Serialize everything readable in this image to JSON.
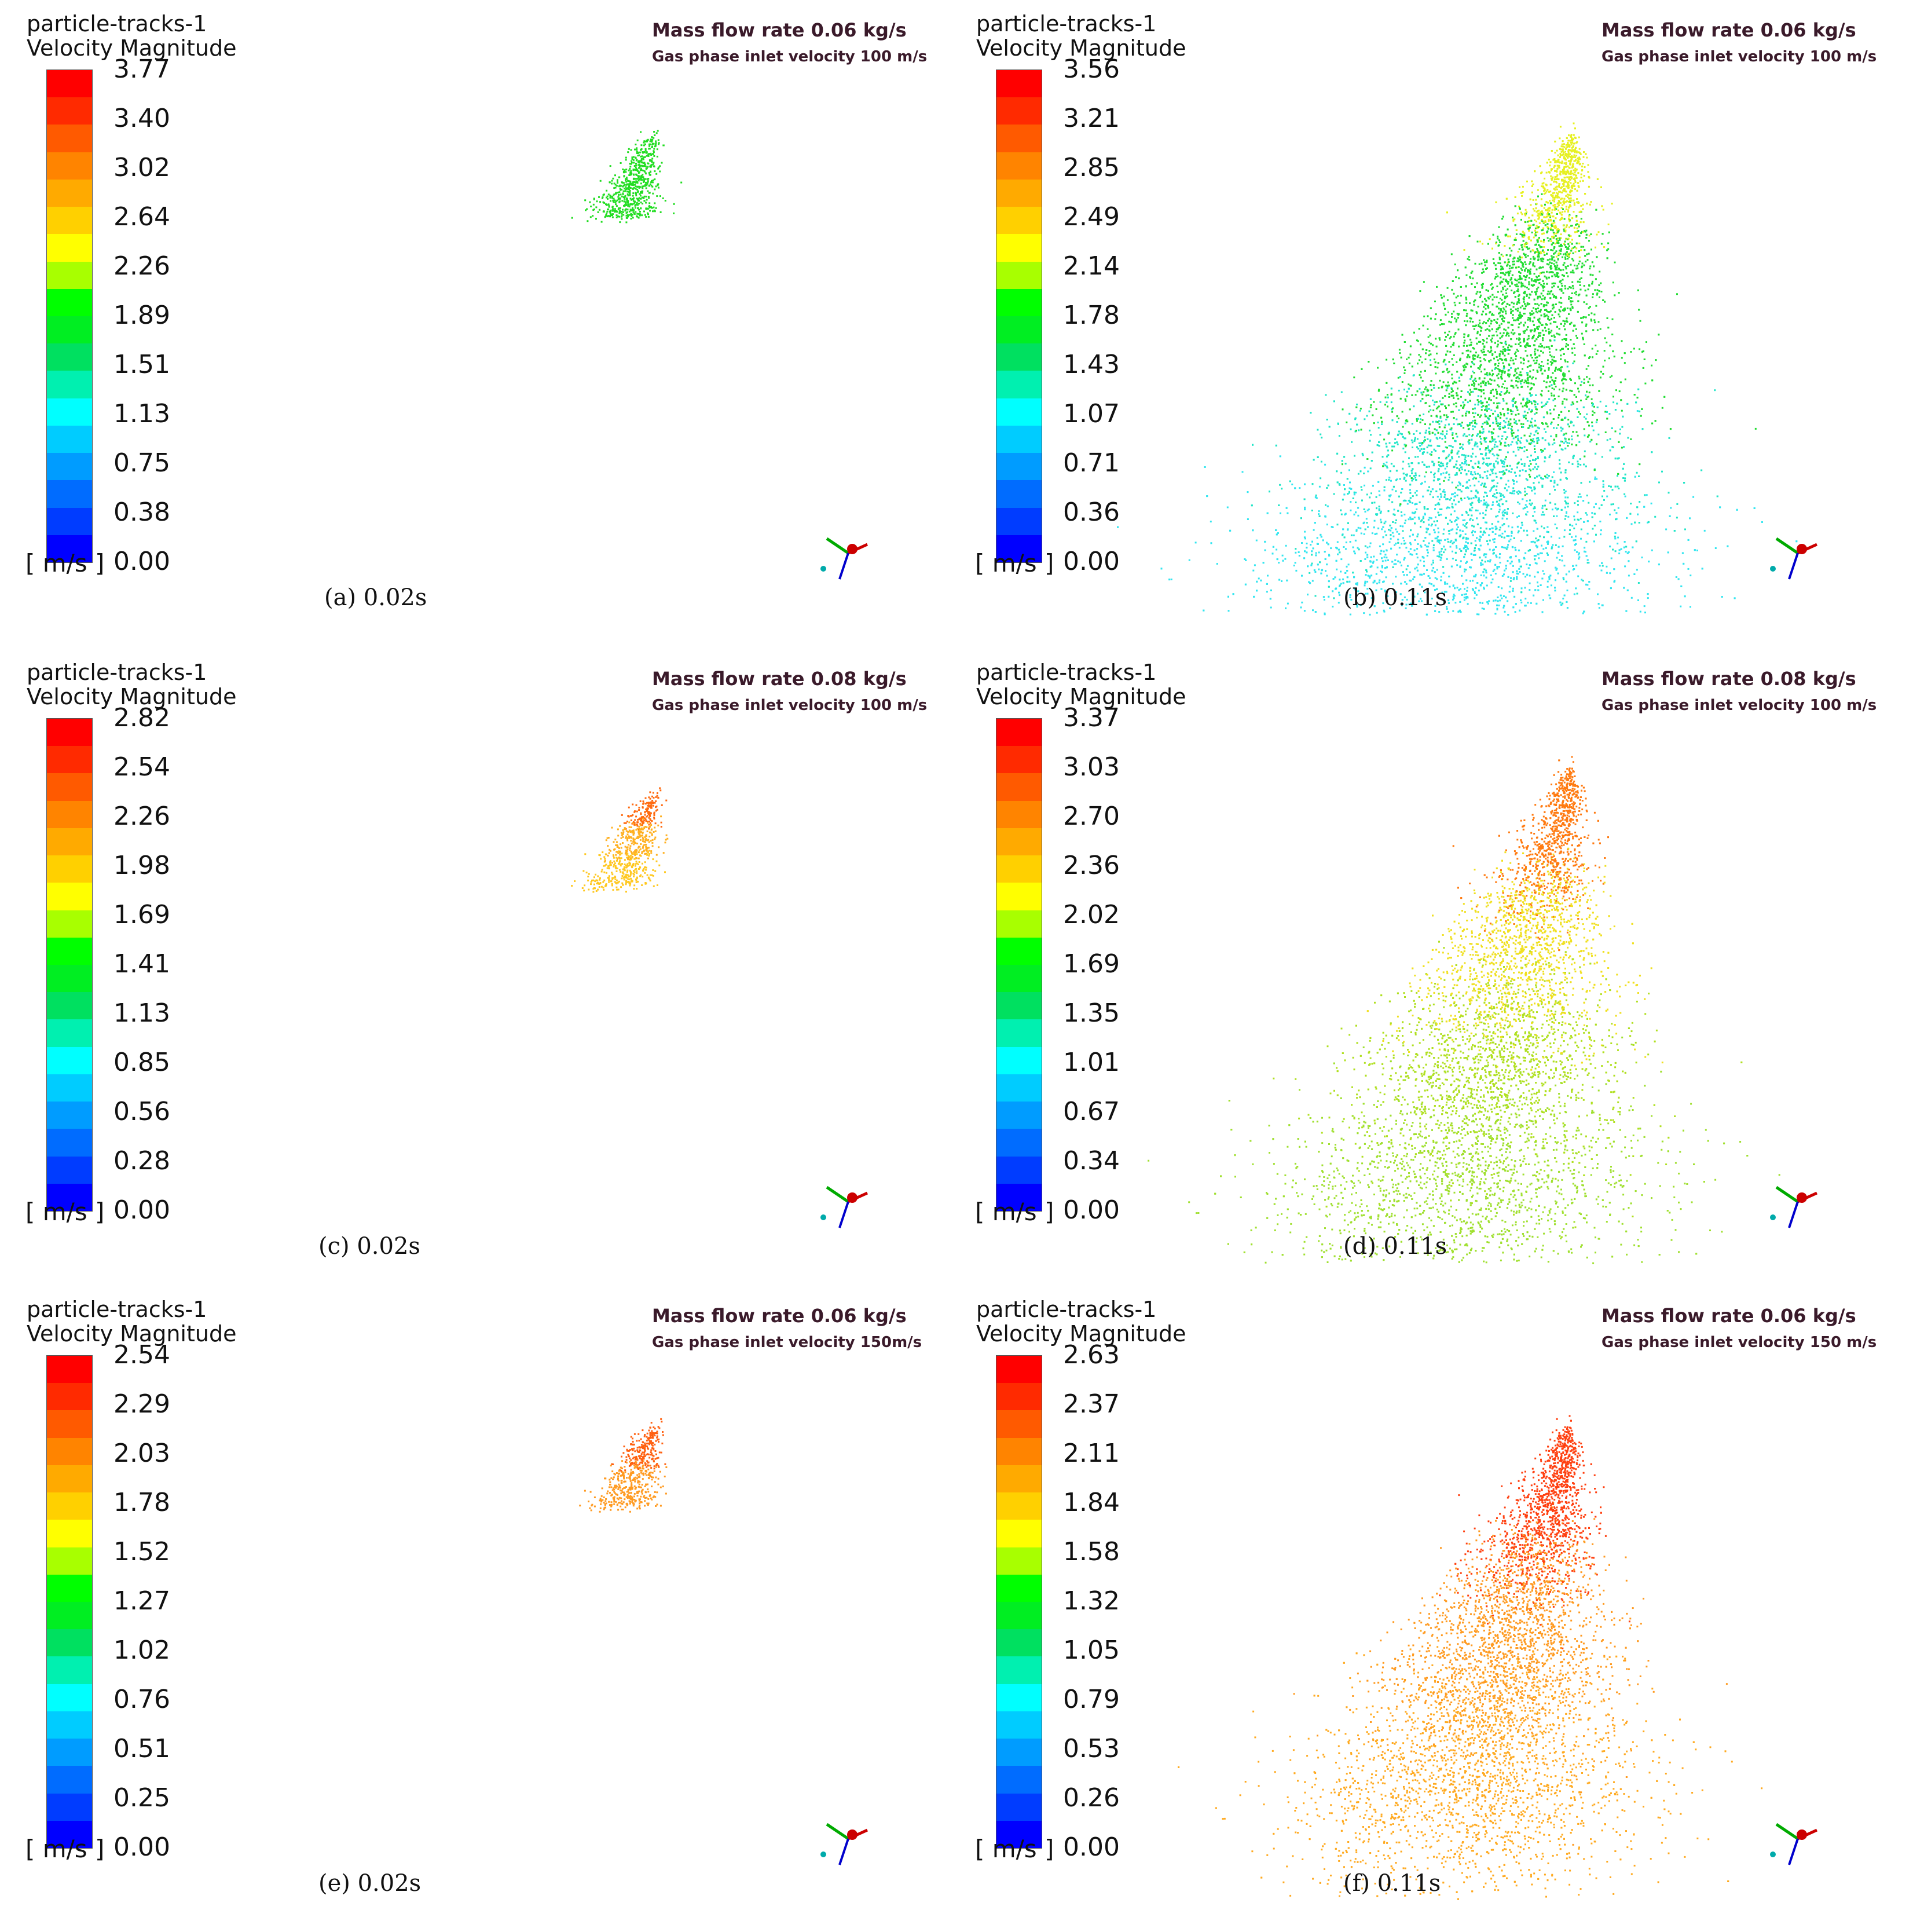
{
  "panels": [
    {
      "legend_line1": "particle-tracks-1",
      "legend_line2": "Velocity Magnitude",
      "ticks": [
        "3.77",
        "3.40",
        "3.02",
        "2.64",
        "2.26",
        "1.89",
        "1.51",
        "1.13",
        "0.75",
        "0.38",
        "0.00"
      ],
      "unit": "[ m/s ]",
      "note_line1": "Mass flow rate 0.06 kg/s",
      "note_line2": "Gas phase inlet velocity 100 m/s",
      "caption": "(a)  0.02s",
      "spray": {
        "time": "0.02s",
        "dominant_color": "#22dd22"
      }
    },
    {
      "legend_line1": "particle-tracks-1",
      "legend_line2": "Velocity Magnitude",
      "ticks": [
        "3.56",
        "3.21",
        "2.85",
        "2.49",
        "2.14",
        "1.78",
        "1.43",
        "1.07",
        "0.71",
        "0.36",
        "0.00"
      ],
      "unit": "[ m/s ]",
      "note_line1": "Mass flow rate 0.06 kg/s",
      "note_line2": "Gas phase inlet velocity 100 m/s",
      "caption": "(b) 0.11s",
      "spray": {
        "time": "0.11s",
        "colors": [
          "#e6f020",
          "#22dd33",
          "#22dd33",
          "#22e6c8",
          "#33e6f0"
        ]
      }
    },
    {
      "legend_line1": "particle-tracks-1",
      "legend_line2": "Velocity Magnitude",
      "ticks": [
        "2.82",
        "2.54",
        "2.26",
        "1.98",
        "1.69",
        "1.41",
        "1.13",
        "0.85",
        "0.56",
        "0.28",
        "0.00"
      ],
      "unit": "[ m/s ]",
      "note_line1": "Mass flow rate 0.08 kg/s",
      "note_line2": "Gas phase inlet velocity 100 m/s",
      "caption": "(c) 0.02s",
      "spray": {
        "time": "0.02s",
        "colors": [
          "#ff6a10",
          "#ffb020",
          "#ffc820"
        ]
      }
    },
    {
      "legend_line1": "particle-tracks-1",
      "legend_line2": "Velocity Magnitude",
      "ticks": [
        "3.37",
        "3.03",
        "2.70",
        "2.36",
        "2.02",
        "1.69",
        "1.35",
        "1.01",
        "0.67",
        "0.34",
        "0.00"
      ],
      "unit": "[ m/s ]",
      "note_line1": "Mass flow rate 0.08 kg/s",
      "note_line2": "Gas phase inlet velocity 100 m/s",
      "caption": "(d) 0.11s",
      "spray": {
        "time": "0.11s",
        "colors": [
          "#ff7a10",
          "#f0e020",
          "#b0e020",
          "#a0e030"
        ]
      }
    },
    {
      "legend_line1": "particle-tracks-1",
      "legend_line2": "Velocity Magnitude",
      "ticks": [
        "2.54",
        "2.29",
        "2.03",
        "1.78",
        "1.52",
        "1.27",
        "1.02",
        "0.76",
        "0.51",
        "0.25",
        "0.00"
      ],
      "unit": "[ m/s ]",
      "note_line1": "Mass flow rate 0.06 kg/s",
      "note_line2": "Gas phase inlet velocity 150m/s",
      "caption": "(e) 0.02s",
      "spray": {
        "time": "0.02s",
        "colors": [
          "#ff6010",
          "#ff9a20"
        ]
      }
    },
    {
      "legend_line1": "particle-tracks-1",
      "legend_line2": "Velocity Magnitude",
      "ticks": [
        "2.63",
        "2.37",
        "2.11",
        "1.84",
        "1.58",
        "1.32",
        "1.05",
        "0.79",
        "0.53",
        "0.26",
        "0.00"
      ],
      "unit": "[ m/s ]",
      "note_line1": "Mass flow rate 0.06 kg/s",
      "note_line2": "Gas phase inlet velocity 150 m/s",
      "caption": "(f) 0.11s",
      "spray": {
        "time": "0.11s",
        "colors": [
          "#ff4010",
          "#ff9a20",
          "#ffaa20"
        ]
      }
    }
  ],
  "colormap": [
    "#ff0000",
    "#ff2a00",
    "#ff5a00",
    "#ff8400",
    "#ffaa00",
    "#ffd000",
    "#ffff00",
    "#a8ff00",
    "#00ff00",
    "#00ee22",
    "#00e060",
    "#00f0b0",
    "#00ffff",
    "#00ccff",
    "#009cff",
    "#006cff",
    "#003cff",
    "#0000ff"
  ],
  "triad_colors": {
    "x": "#cc0000",
    "y": "#00aa00",
    "z": "#0000cc",
    "origin": "#00aaaa"
  }
}
